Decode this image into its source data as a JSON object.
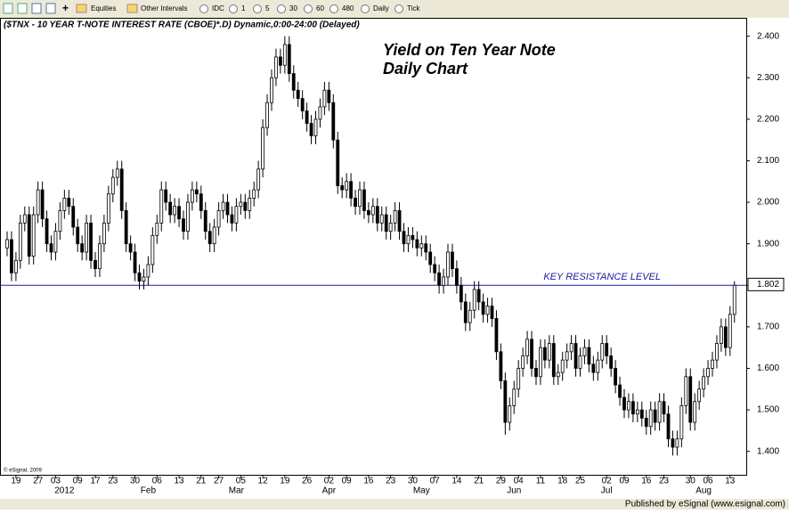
{
  "toolbar": [
    "Equities",
    "Other Intervals",
    "IDC",
    "1",
    "5",
    "30",
    "60",
    "480",
    "Daily",
    "Tick"
  ],
  "footer": "Published by eSignal (www.esignal.com)",
  "chart_data": {
    "type": "candlestick",
    "title": "($TNX - 10 YEAR T-NOTE INTEREST RATE (CBOE)*.D) Dynamic,0:00-24:00 (Delayed)",
    "annotation": [
      "Yield on Ten Year Note",
      "Daily Chart"
    ],
    "copyright": "© eSignal, 2009",
    "resistance": {
      "label": "KEY RESISTANCE LEVEL",
      "value": 1.8,
      "color": "#1a1aa6"
    },
    "last_value": 1.802,
    "ylim": [
      1.35,
      2.44
    ],
    "yticks": [
      {
        "value": 1.4,
        "label": "1.400"
      },
      {
        "value": 1.5,
        "label": "1.500"
      },
      {
        "value": 1.6,
        "label": "1.600"
      },
      {
        "value": 1.7,
        "label": "1.700"
      },
      {
        "value": 1.8,
        "label": "1.800"
      },
      {
        "value": 1.9,
        "label": "1.900"
      },
      {
        "value": 2.0,
        "label": "2.000"
      },
      {
        "value": 2.1,
        "label": "2.100"
      },
      {
        "value": 2.2,
        "label": "2.200"
      },
      {
        "value": 2.3,
        "label": "2.300"
      },
      {
        "value": 2.4,
        "label": "2.400"
      }
    ],
    "categories": [
      null,
      null,
      "19",
      null,
      null,
      null,
      null,
      "27",
      null,
      null,
      null,
      "03",
      null,
      null,
      null,
      null,
      "09",
      null,
      null,
      null,
      "17",
      null,
      null,
      null,
      "23",
      null,
      null,
      null,
      null,
      "30",
      null,
      null,
      null,
      null,
      "06",
      null,
      null,
      null,
      null,
      "13",
      null,
      null,
      null,
      null,
      "21",
      null,
      null,
      null,
      "27",
      null,
      null,
      null,
      null,
      "05",
      null,
      null,
      null,
      null,
      "12",
      null,
      null,
      null,
      null,
      "19",
      null,
      null,
      null,
      null,
      "26",
      null,
      null,
      null,
      null,
      "02",
      null,
      null,
      null,
      "09",
      null,
      null,
      null,
      null,
      "16",
      null,
      null,
      null,
      null,
      "23",
      null,
      null,
      null,
      null,
      "30",
      null,
      null,
      null,
      null,
      "07",
      null,
      null,
      null,
      null,
      "14",
      null,
      null,
      null,
      null,
      "21",
      null,
      null,
      null,
      null,
      "29",
      null,
      null,
      null,
      "04",
      null,
      null,
      null,
      null,
      "11",
      null,
      null,
      null,
      null,
      "18",
      null,
      null,
      null,
      "25",
      null,
      null,
      null,
      null,
      null,
      "02",
      null,
      null,
      null,
      "09",
      null,
      null,
      null,
      null,
      "16",
      null,
      null,
      null,
      "23",
      null,
      null,
      null,
      null,
      null,
      "30",
      null,
      null,
      null,
      "06",
      null,
      null,
      null,
      null,
      "13",
      null
    ],
    "months": [
      null,
      null,
      null,
      null,
      null,
      null,
      null,
      null,
      null,
      null,
      null,
      null,
      null,
      "2012",
      null,
      null,
      null,
      null,
      null,
      null,
      null,
      null,
      null,
      null,
      null,
      null,
      null,
      null,
      null,
      null,
      null,
      null,
      "Feb",
      null,
      null,
      null,
      null,
      null,
      null,
      null,
      null,
      null,
      null,
      null,
      null,
      null,
      null,
      null,
      null,
      null,
      null,
      null,
      "Mar",
      null,
      null,
      null,
      null,
      null,
      null,
      null,
      null,
      null,
      null,
      null,
      null,
      null,
      null,
      null,
      null,
      null,
      null,
      null,
      null,
      "Apr",
      null,
      null,
      null,
      null,
      null,
      null,
      null,
      null,
      null,
      null,
      null,
      null,
      null,
      null,
      null,
      null,
      null,
      null,
      null,
      null,
      "May",
      null,
      null,
      null,
      null,
      null,
      null,
      null,
      null,
      null,
      null,
      null,
      null,
      null,
      null,
      null,
      null,
      null,
      null,
      null,
      null,
      "Jun",
      null,
      null,
      null,
      null,
      null,
      null,
      null,
      null,
      null,
      null,
      null,
      null,
      null,
      null,
      null,
      null,
      null,
      null,
      null,
      null,
      "Jul",
      null,
      null,
      null,
      null,
      null,
      null,
      null,
      null,
      null,
      null,
      null,
      null,
      null,
      null,
      null,
      null,
      null,
      null,
      null,
      null,
      null,
      "Aug",
      null,
      null,
      null,
      null,
      null,
      null,
      null
    ],
    "open": [
      1.89,
      1.91,
      1.83,
      1.86,
      1.95,
      1.97,
      1.87,
      1.97,
      2.03,
      1.96,
      1.9,
      1.88,
      1.93,
      1.98,
      2.01,
      1.99,
      1.94,
      1.9,
      1.88,
      1.95,
      1.86,
      1.84,
      1.9,
      1.95,
      2.02,
      2.06,
      2.08,
      1.98,
      1.9,
      1.88,
      1.83,
      1.81,
      1.82,
      1.85,
      1.92,
      1.95,
      2.03,
      2.0,
      1.97,
      1.99,
      1.96,
      1.93,
      2.0,
      2.03,
      2.02,
      1.98,
      1.93,
      1.9,
      1.94,
      1.98,
      2.0,
      1.97,
      1.95,
      1.99,
      2.0,
      1.98,
      2.01,
      2.03,
      2.08,
      2.18,
      2.24,
      2.3,
      2.35,
      2.33,
      2.38,
      2.31,
      2.27,
      2.25,
      2.22,
      2.19,
      2.16,
      2.2,
      2.23,
      2.27,
      2.24,
      2.15,
      2.04,
      2.03,
      2.05,
      2.01,
      1.99,
      2.03,
      1.98,
      1.97,
      1.99,
      1.95,
      1.97,
      1.93,
      1.95,
      1.98,
      1.93,
      1.9,
      1.92,
      1.91,
      1.89,
      1.9,
      1.88,
      1.85,
      1.83,
      1.8,
      1.82,
      1.88,
      1.84,
      1.8,
      1.76,
      1.71,
      1.74,
      1.79,
      1.76,
      1.73,
      1.75,
      1.72,
      1.64,
      1.57,
      1.47,
      1.51,
      1.55,
      1.6,
      1.63,
      1.67,
      1.6,
      1.58,
      1.65,
      1.62,
      1.66,
      1.58,
      1.59,
      1.62,
      1.64,
      1.66,
      1.6,
      1.63,
      1.65,
      1.61,
      1.59,
      1.62,
      1.66,
      1.63,
      1.6,
      1.56,
      1.53,
      1.5,
      1.52,
      1.49,
      1.5,
      1.48,
      1.46,
      1.5,
      1.47,
      1.52,
      1.49,
      1.43,
      1.41,
      1.43,
      1.51,
      1.58,
      1.47,
      1.52,
      1.55,
      1.58,
      1.6,
      1.62,
      1.66,
      1.7,
      1.65,
      1.73
    ],
    "high": [
      1.93,
      1.93,
      1.88,
      1.97,
      1.99,
      1.99,
      1.99,
      2.05,
      2.05,
      1.98,
      1.92,
      1.95,
      2.0,
      2.03,
      2.03,
      2.01,
      1.96,
      1.92,
      1.97,
      1.97,
      1.88,
      1.92,
      1.97,
      2.04,
      2.08,
      2.1,
      2.1,
      2.0,
      1.92,
      1.9,
      1.85,
      1.84,
      1.87,
      1.94,
      1.97,
      2.05,
      2.05,
      2.02,
      2.01,
      2.01,
      1.98,
      2.02,
      2.05,
      2.05,
      2.04,
      2.0,
      1.95,
      1.96,
      2.0,
      2.02,
      2.02,
      1.99,
      2.01,
      2.02,
      2.02,
      2.03,
      2.05,
      2.1,
      2.2,
      2.26,
      2.32,
      2.37,
      2.37,
      2.4,
      2.4,
      2.33,
      2.29,
      2.27,
      2.24,
      2.21,
      2.22,
      2.25,
      2.29,
      2.29,
      2.26,
      2.17,
      2.06,
      2.07,
      2.07,
      2.03,
      2.05,
      2.05,
      2.0,
      2.01,
      2.01,
      1.99,
      1.99,
      1.97,
      2.0,
      2.0,
      1.95,
      1.94,
      1.94,
      1.93,
      1.92,
      1.92,
      1.9,
      1.87,
      1.85,
      1.84,
      1.9,
      1.9,
      1.86,
      1.82,
      1.78,
      1.76,
      1.81,
      1.81,
      1.78,
      1.77,
      1.77,
      1.74,
      1.66,
      1.59,
      1.53,
      1.57,
      1.62,
      1.65,
      1.69,
      1.69,
      1.62,
      1.67,
      1.67,
      1.68,
      1.68,
      1.61,
      1.64,
      1.66,
      1.68,
      1.68,
      1.65,
      1.67,
      1.67,
      1.63,
      1.64,
      1.68,
      1.68,
      1.65,
      1.62,
      1.58,
      1.55,
      1.54,
      1.54,
      1.52,
      1.52,
      1.5,
      1.52,
      1.52,
      1.54,
      1.54,
      1.51,
      1.45,
      1.45,
      1.53,
      1.6,
      1.6,
      1.54,
      1.57,
      1.6,
      1.62,
      1.64,
      1.68,
      1.72,
      1.72,
      1.75,
      1.81
    ],
    "low": [
      1.87,
      1.81,
      1.81,
      1.84,
      1.93,
      1.85,
      1.85,
      1.95,
      1.94,
      1.88,
      1.86,
      1.86,
      1.91,
      1.96,
      1.97,
      1.92,
      1.88,
      1.86,
      1.86,
      1.84,
      1.82,
      1.82,
      1.88,
      1.93,
      2.0,
      2.04,
      1.96,
      1.88,
      1.86,
      1.81,
      1.79,
      1.79,
      1.8,
      1.83,
      1.9,
      1.93,
      1.98,
      1.95,
      1.95,
      1.94,
      1.91,
      1.91,
      1.98,
      2.0,
      1.96,
      1.91,
      1.88,
      1.88,
      1.92,
      1.96,
      1.95,
      1.93,
      1.93,
      1.97,
      1.96,
      1.96,
      1.99,
      2.01,
      2.06,
      2.16,
      2.22,
      2.28,
      2.31,
      2.31,
      2.29,
      2.25,
      2.23,
      2.2,
      2.17,
      2.14,
      2.14,
      2.18,
      2.21,
      2.22,
      2.13,
      2.02,
      2.01,
      2.01,
      1.99,
      1.97,
      1.97,
      1.96,
      1.95,
      1.95,
      1.93,
      1.93,
      1.91,
      1.91,
      1.93,
      1.91,
      1.88,
      1.88,
      1.89,
      1.87,
      1.87,
      1.86,
      1.83,
      1.81,
      1.78,
      1.78,
      1.8,
      1.82,
      1.78,
      1.74,
      1.69,
      1.69,
      1.72,
      1.74,
      1.71,
      1.71,
      1.7,
      1.62,
      1.55,
      1.44,
      1.45,
      1.49,
      1.53,
      1.58,
      1.61,
      1.58,
      1.56,
      1.56,
      1.6,
      1.6,
      1.56,
      1.56,
      1.57,
      1.6,
      1.62,
      1.58,
      1.58,
      1.61,
      1.59,
      1.57,
      1.57,
      1.6,
      1.61,
      1.58,
      1.54,
      1.51,
      1.48,
      1.48,
      1.47,
      1.47,
      1.46,
      1.44,
      1.44,
      1.45,
      1.45,
      1.47,
      1.41,
      1.39,
      1.39,
      1.41,
      1.49,
      1.45,
      1.45,
      1.5,
      1.53,
      1.56,
      1.58,
      1.6,
      1.64,
      1.63,
      1.63,
      1.71
    ],
    "close": [
      1.91,
      1.83,
      1.86,
      1.95,
      1.97,
      1.87,
      1.97,
      2.03,
      1.96,
      1.9,
      1.88,
      1.93,
      1.98,
      2.01,
      1.99,
      1.94,
      1.9,
      1.88,
      1.95,
      1.86,
      1.84,
      1.9,
      1.95,
      2.02,
      2.06,
      2.08,
      1.98,
      1.9,
      1.88,
      1.83,
      1.81,
      1.82,
      1.85,
      1.92,
      1.95,
      2.03,
      2.0,
      1.97,
      1.99,
      1.96,
      1.93,
      2.0,
      2.03,
      2.02,
      1.98,
      1.93,
      1.9,
      1.94,
      1.98,
      2.0,
      1.97,
      1.95,
      1.99,
      2.0,
      1.98,
      2.01,
      2.03,
      2.08,
      2.18,
      2.24,
      2.3,
      2.35,
      2.33,
      2.38,
      2.31,
      2.27,
      2.25,
      2.22,
      2.19,
      2.16,
      2.2,
      2.23,
      2.27,
      2.24,
      2.15,
      2.04,
      2.03,
      2.05,
      2.01,
      1.99,
      2.03,
      1.98,
      1.97,
      1.99,
      1.95,
      1.97,
      1.93,
      1.95,
      1.98,
      1.93,
      1.9,
      1.92,
      1.91,
      1.89,
      1.9,
      1.88,
      1.85,
      1.83,
      1.8,
      1.82,
      1.88,
      1.84,
      1.8,
      1.76,
      1.71,
      1.74,
      1.79,
      1.76,
      1.73,
      1.75,
      1.72,
      1.64,
      1.57,
      1.47,
      1.51,
      1.55,
      1.6,
      1.63,
      1.67,
      1.6,
      1.58,
      1.65,
      1.62,
      1.66,
      1.58,
      1.59,
      1.62,
      1.64,
      1.66,
      1.6,
      1.63,
      1.65,
      1.61,
      1.59,
      1.62,
      1.66,
      1.63,
      1.6,
      1.56,
      1.53,
      1.5,
      1.52,
      1.49,
      1.5,
      1.48,
      1.46,
      1.5,
      1.47,
      1.52,
      1.49,
      1.43,
      1.41,
      1.43,
      1.51,
      1.58,
      1.47,
      1.52,
      1.55,
      1.58,
      1.6,
      1.62,
      1.66,
      1.7,
      1.65,
      1.73,
      1.8
    ],
    "up_color": "#ffffff",
    "down_color": "#000000"
  }
}
